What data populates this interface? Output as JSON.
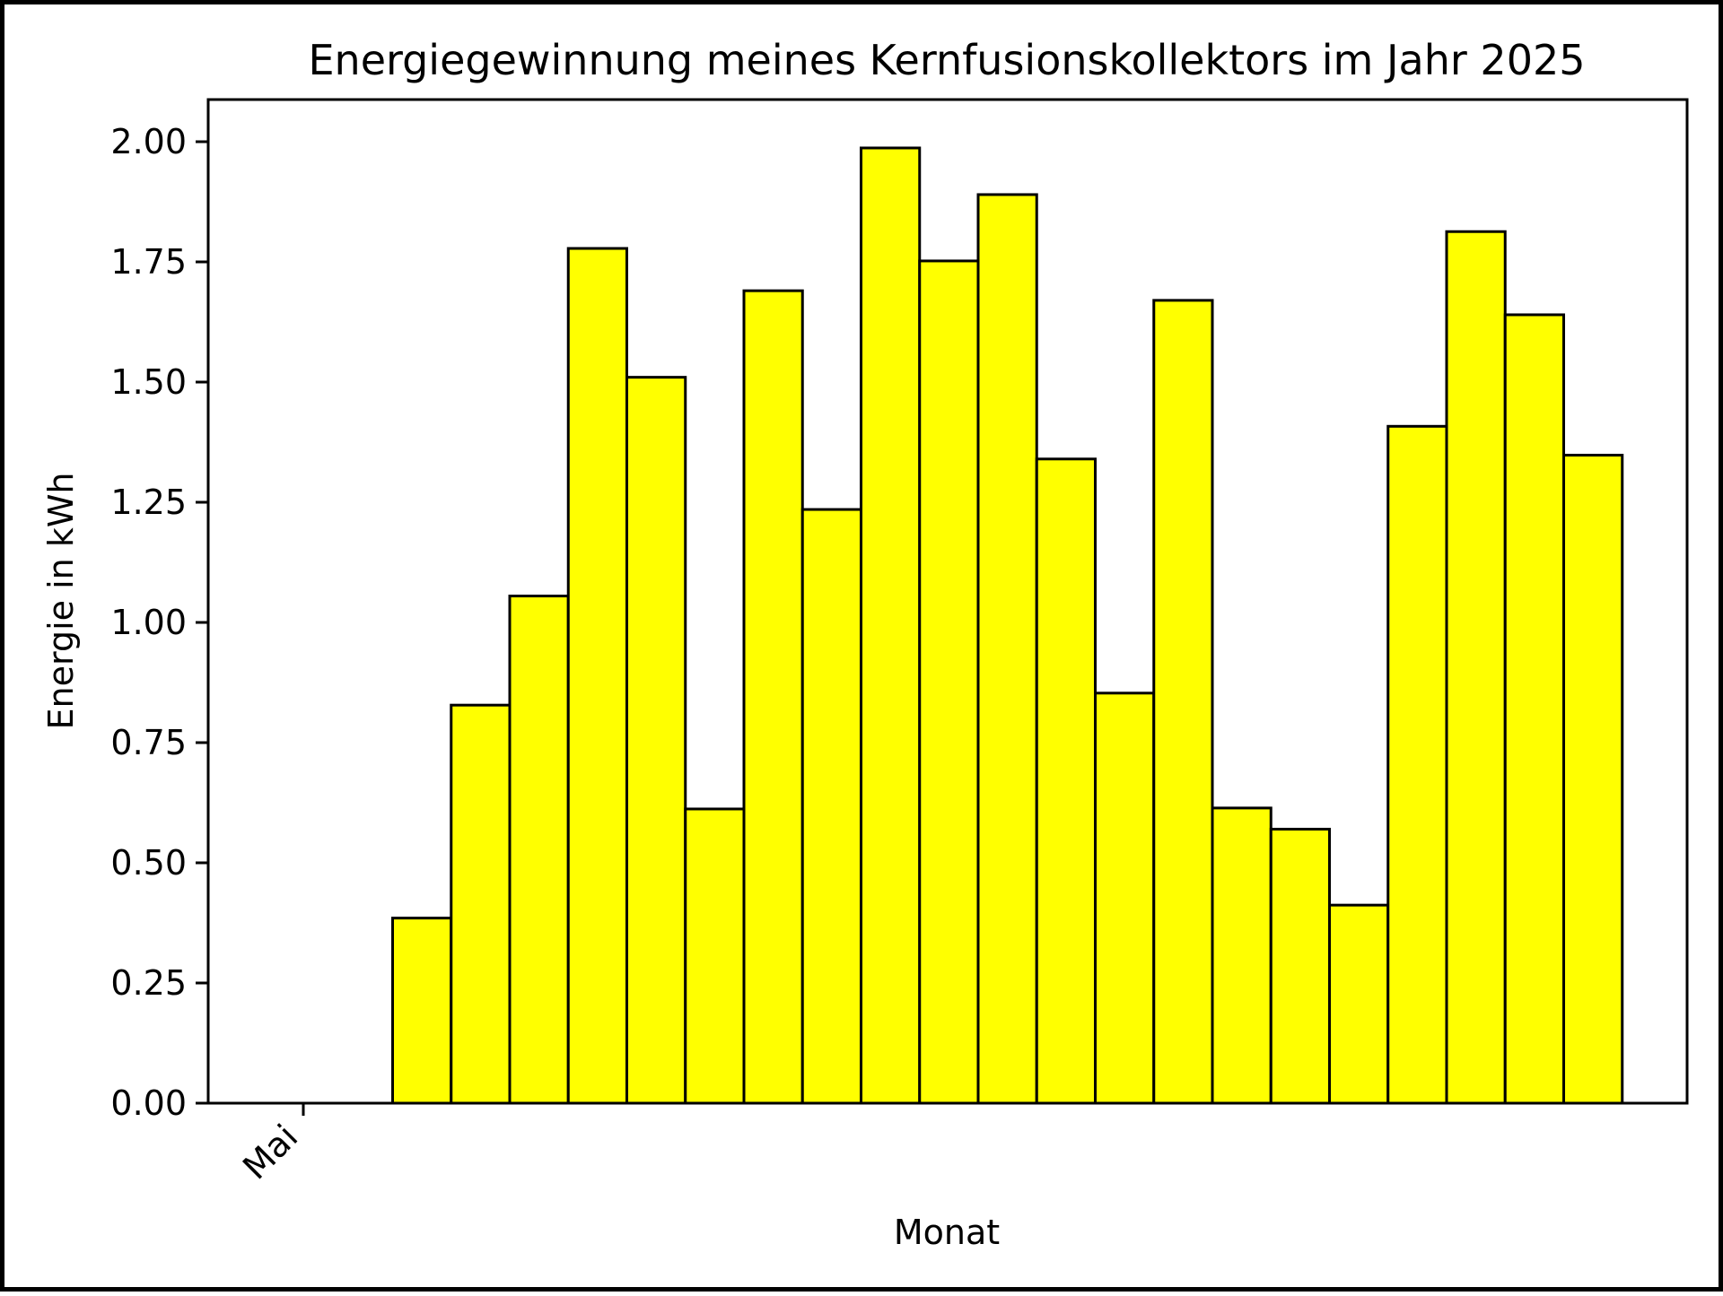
{
  "chart_data": {
    "type": "bar",
    "title": "Energiegewinnung meines Kernfusionskollektors im Jahr 2025",
    "xlabel": "Monat",
    "ylabel": "Energie in kWh",
    "x_tick_labels": [
      "Mai"
    ],
    "y_ticks": [
      0.0,
      0.25,
      0.5,
      0.75,
      1.0,
      1.25,
      1.5,
      1.75,
      2.0
    ],
    "ylim": [
      0,
      2.08
    ],
    "grid": false,
    "legend": "none",
    "bar_color": "#ffff00",
    "edge_color": "#000000",
    "values": [
      0.0,
      0.0,
      0.385,
      0.828,
      1.055,
      1.778,
      1.51,
      0.612,
      1.69,
      1.235,
      1.987,
      1.752,
      1.89,
      1.34,
      0.853,
      1.67,
      0.614,
      0.57,
      0.412,
      1.408,
      1.813,
      1.64,
      1.348
    ]
  }
}
